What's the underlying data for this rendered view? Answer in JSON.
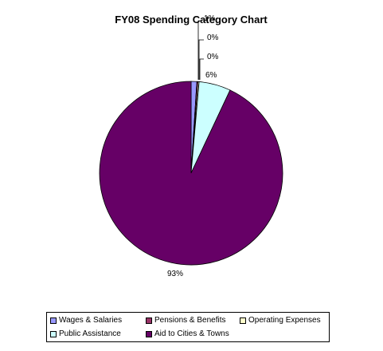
{
  "chart_data": {
    "type": "pie",
    "title": "FY08 Spending Category Chart",
    "slices": [
      {
        "name": "Wages & Salaries",
        "value": 1,
        "label": "1%",
        "color": "#9999ff"
      },
      {
        "name": "Pensions & Benefits",
        "value": 0.2,
        "label": "0%",
        "color": "#993366"
      },
      {
        "name": "Operating Expenses",
        "value": 0.2,
        "label": "0%",
        "color": "#ffffcc"
      },
      {
        "name": "Public Assistance",
        "value": 5.6,
        "label": "6%",
        "color": "#ccffff"
      },
      {
        "name": "Aid to Cities & Towns",
        "value": 93,
        "label": "93%",
        "color": "#660066"
      }
    ],
    "legend_position": "bottom"
  }
}
